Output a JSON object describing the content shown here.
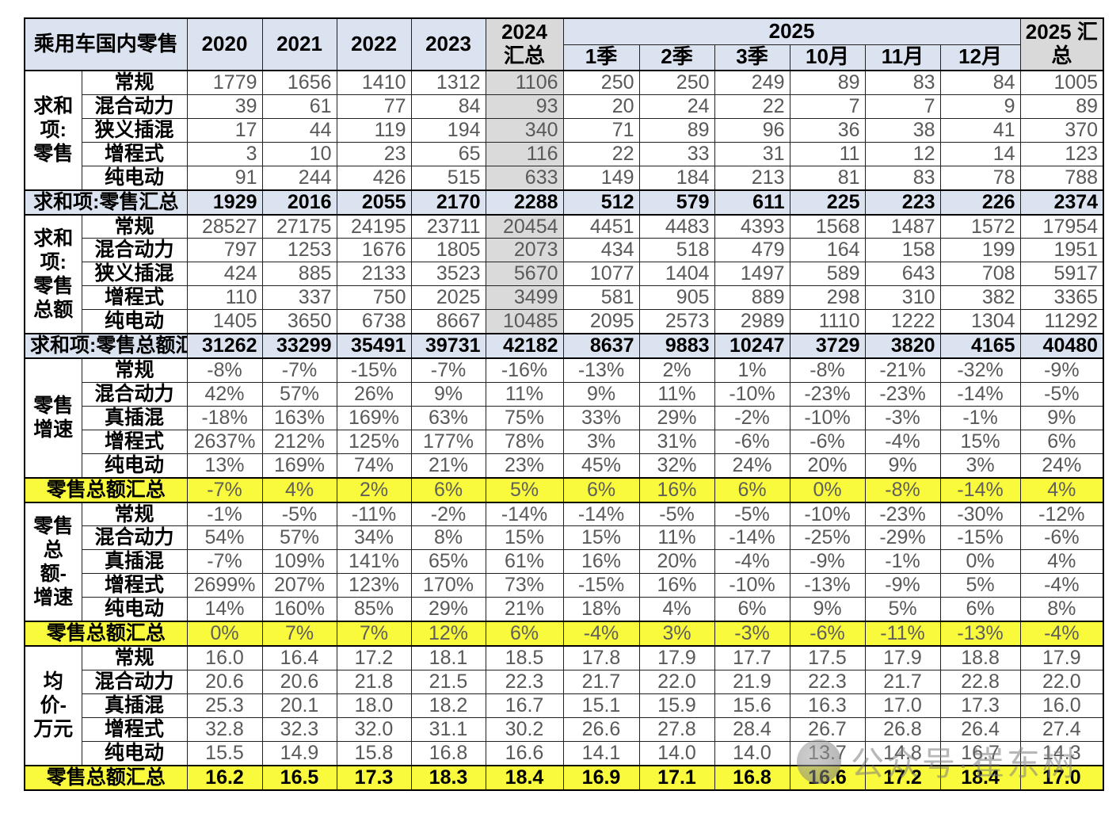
{
  "chart_data": {
    "type": "table",
    "title": "乘用车国内零售",
    "columns": [
      "2020",
      "2021",
      "2022",
      "2023",
      "2024 汇总",
      "1季",
      "2季",
      "3季",
      "10月",
      "11月",
      "12月",
      "2025 汇总"
    ],
    "header": {
      "corner": "乘用车国内零售",
      "years": [
        "2020",
        "2021",
        "2022",
        "2023"
      ],
      "sum2024": "2024 汇总",
      "y2025": "2025",
      "sub2025": [
        "1季",
        "2季",
        "3季",
        "10月",
        "11月",
        "12月"
      ],
      "sum2025": "2025 汇总"
    },
    "sections": [
      {
        "group": "求和项:零售",
        "align": "right",
        "gray_sum_col": true,
        "rows": [
          {
            "label": "常规",
            "values": [
              "1779",
              "1656",
              "1410",
              "1312",
              "1106",
              "250",
              "250",
              "249",
              "89",
              "83",
              "84",
              "1005"
            ]
          },
          {
            "label": "混合动力",
            "values": [
              "39",
              "61",
              "77",
              "84",
              "93",
              "20",
              "24",
              "22",
              "7",
              "7",
              "9",
              "89"
            ]
          },
          {
            "label": "狭义插混",
            "values": [
              "17",
              "44",
              "119",
              "194",
              "340",
              "71",
              "89",
              "96",
              "36",
              "38",
              "41",
              "370"
            ]
          },
          {
            "label": "增程式",
            "values": [
              "3",
              "10",
              "23",
              "65",
              "116",
              "22",
              "33",
              "31",
              "11",
              "12",
              "14",
              "123"
            ]
          },
          {
            "label": "纯电动",
            "values": [
              "91",
              "244",
              "426",
              "515",
              "633",
              "149",
              "184",
              "213",
              "81",
              "83",
              "78",
              "788"
            ]
          }
        ],
        "summary": {
          "label": "求和项:零售汇总",
          "style": "blue",
          "bold": true,
          "values": [
            "1929",
            "2016",
            "2055",
            "2170",
            "2288",
            "512",
            "579",
            "611",
            "225",
            "223",
            "226",
            "2374"
          ]
        }
      },
      {
        "group": "求和项:零售总额",
        "align": "right",
        "gray_sum_col": true,
        "rows": [
          {
            "label": "常规",
            "values": [
              "28527",
              "27175",
              "24195",
              "23711",
              "20454",
              "4451",
              "4483",
              "4393",
              "1568",
              "1487",
              "1572",
              "17954"
            ]
          },
          {
            "label": "混合动力",
            "values": [
              "797",
              "1253",
              "1676",
              "1805",
              "2073",
              "434",
              "518",
              "479",
              "164",
              "158",
              "199",
              "1951"
            ]
          },
          {
            "label": "狭义插混",
            "values": [
              "424",
              "885",
              "2133",
              "3523",
              "5670",
              "1077",
              "1404",
              "1497",
              "589",
              "643",
              "708",
              "5917"
            ]
          },
          {
            "label": "增程式",
            "values": [
              "110",
              "337",
              "750",
              "2025",
              "3499",
              "581",
              "905",
              "889",
              "298",
              "310",
              "382",
              "3365"
            ]
          },
          {
            "label": "纯电动",
            "values": [
              "1405",
              "3650",
              "6738",
              "8667",
              "10485",
              "2095",
              "2573",
              "2989",
              "1110",
              "1222",
              "1304",
              "11292"
            ]
          }
        ],
        "summary": {
          "label": "求和项:零售总额汇",
          "style": "blue",
          "bold": true,
          "values": [
            "31262",
            "33299",
            "35491",
            "39731",
            "42182",
            "8637",
            "9883",
            "10247",
            "3729",
            "3820",
            "4165",
            "40480"
          ]
        }
      },
      {
        "group": "零售增速",
        "align": "center",
        "gray_sum_col": false,
        "rows": [
          {
            "label": "常规",
            "values": [
              "-8%",
              "-7%",
              "-15%",
              "-7%",
              "-16%",
              "-13%",
              "2%",
              "1%",
              "-8%",
              "-21%",
              "-32%",
              "-9%"
            ]
          },
          {
            "label": "混合动力",
            "values": [
              "42%",
              "57%",
              "26%",
              "9%",
              "11%",
              "9%",
              "11%",
              "-10%",
              "-23%",
              "-23%",
              "-14%",
              "-5%"
            ]
          },
          {
            "label": "真插混",
            "values": [
              "-18%",
              "163%",
              "169%",
              "63%",
              "75%",
              "33%",
              "29%",
              "-2%",
              "-10%",
              "-3%",
              "-1%",
              "9%"
            ]
          },
          {
            "label": "增程式",
            "values": [
              "2637%",
              "212%",
              "125%",
              "177%",
              "78%",
              "3%",
              "31%",
              "-6%",
              "-6%",
              "-4%",
              "15%",
              "6%"
            ]
          },
          {
            "label": "纯电动",
            "values": [
              "13%",
              "169%",
              "74%",
              "21%",
              "23%",
              "45%",
              "32%",
              "24%",
              "20%",
              "9%",
              "3%",
              "24%"
            ]
          }
        ],
        "summary": {
          "label": "零售总额汇总",
          "style": "yellow",
          "bold": false,
          "values": [
            "-7%",
            "4%",
            "2%",
            "6%",
            "5%",
            "6%",
            "16%",
            "6%",
            "0%",
            "-8%",
            "-14%",
            "4%"
          ]
        }
      },
      {
        "group": "零售总额-增速",
        "align": "center",
        "gray_sum_col": false,
        "rows": [
          {
            "label": "常规",
            "values": [
              "-1%",
              "-5%",
              "-11%",
              "-2%",
              "-14%",
              "-14%",
              "-5%",
              "-5%",
              "-10%",
              "-23%",
              "-30%",
              "-12%"
            ]
          },
          {
            "label": "混合动力",
            "values": [
              "54%",
              "57%",
              "34%",
              "8%",
              "15%",
              "15%",
              "11%",
              "-14%",
              "-25%",
              "-29%",
              "-15%",
              "-6%"
            ]
          },
          {
            "label": "真插混",
            "values": [
              "-7%",
              "109%",
              "141%",
              "65%",
              "61%",
              "16%",
              "20%",
              "-4%",
              "-9%",
              "-1%",
              "0%",
              "4%"
            ]
          },
          {
            "label": "增程式",
            "values": [
              "2699%",
              "207%",
              "123%",
              "170%",
              "73%",
              "-15%",
              "16%",
              "-10%",
              "-13%",
              "-9%",
              "5%",
              "-4%"
            ]
          },
          {
            "label": "纯电动",
            "values": [
              "14%",
              "160%",
              "85%",
              "29%",
              "21%",
              "18%",
              "4%",
              "6%",
              "9%",
              "5%",
              "6%",
              "8%"
            ]
          }
        ],
        "summary": {
          "label": "零售总额汇总",
          "style": "yellow",
          "bold": false,
          "values": [
            "0%",
            "7%",
            "7%",
            "12%",
            "6%",
            "-4%",
            "3%",
            "-3%",
            "-6%",
            "-11%",
            "-13%",
            "-4%"
          ]
        }
      },
      {
        "group": "均价-万元",
        "align": "center",
        "gray_sum_col": false,
        "rows": [
          {
            "label": "常规",
            "values": [
              "16.0",
              "16.4",
              "17.2",
              "18.1",
              "18.5",
              "17.8",
              "17.9",
              "17.7",
              "17.5",
              "17.9",
              "18.8",
              "17.9"
            ]
          },
          {
            "label": "混合动力",
            "values": [
              "20.6",
              "20.6",
              "21.8",
              "21.5",
              "22.3",
              "21.7",
              "22.0",
              "21.9",
              "22.3",
              "21.7",
              "22.8",
              "22.0"
            ]
          },
          {
            "label": "真插混",
            "values": [
              "25.3",
              "20.1",
              "18.0",
              "18.2",
              "16.7",
              "15.1",
              "15.9",
              "15.6",
              "16.3",
              "17.0",
              "17.3",
              "16.0"
            ]
          },
          {
            "label": "增程式",
            "values": [
              "32.8",
              "32.3",
              "32.0",
              "31.1",
              "30.2",
              "26.6",
              "27.8",
              "28.4",
              "26.7",
              "26.8",
              "26.4",
              "27.4"
            ]
          },
          {
            "label": "纯电动",
            "values": [
              "15.5",
              "14.9",
              "15.8",
              "16.8",
              "16.6",
              "14.1",
              "14.0",
              "14.0",
              "13.7",
              "14.8",
              "16.7",
              "14.3"
            ]
          }
        ],
        "summary": {
          "label": "零售总额汇总",
          "style": "yellow",
          "bold": true,
          "values": [
            "16.2",
            "16.5",
            "17.3",
            "18.3",
            "18.4",
            "16.9",
            "17.1",
            "16.8",
            "16.6",
            "17.2",
            "18.4",
            "17.0"
          ]
        }
      }
    ]
  },
  "watermark": {
    "text": "公众号·崔东树"
  },
  "colors": {
    "header_bg": "#dce3f0",
    "summary_col_bg": "#d9d9d9",
    "highlight_yellow": "#fafa3c",
    "data_text": "#595959",
    "border": "#000000"
  }
}
